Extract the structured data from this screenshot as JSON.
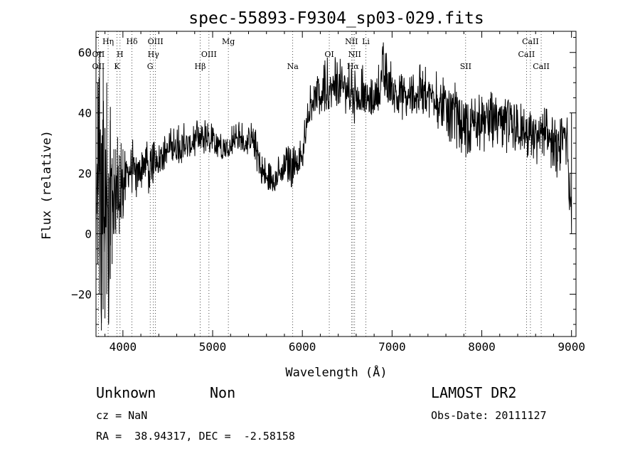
{
  "chart_data": {
    "type": "line",
    "title": "spec-55893-F9304_sp03-029.fits",
    "xlabel": "Wavelength (Å)",
    "ylabel": "Flux (relative)",
    "xlim": [
      3700,
      9050
    ],
    "ylim": [
      -34,
      67
    ],
    "xticks": [
      4000,
      5000,
      6000,
      7000,
      8000,
      9000
    ],
    "yticks": [
      -20,
      0,
      20,
      40,
      60
    ],
    "grid": false,
    "line_color": "#000000",
    "series": [
      {
        "x": [
          3700,
          3720,
          3740,
          3760,
          3780,
          3800,
          3820,
          3840,
          3860,
          3880,
          3900,
          3920,
          3940,
          3960,
          3980,
          4000,
          4050,
          4100,
          4150,
          4200,
          4250,
          4300,
          4350,
          4400,
          4450,
          4500,
          4550,
          4600,
          4650,
          4700,
          4750,
          4800,
          4850,
          4900,
          4950,
          5000,
          5050,
          5100,
          5150,
          5200,
          5250,
          5300,
          5350,
          5400,
          5450,
          5500,
          5550,
          5600,
          5650,
          5700,
          5750,
          5800,
          5850,
          5900,
          5950,
          6000,
          6050,
          6100,
          6150,
          6200,
          6250,
          6300,
          6350,
          6400,
          6450,
          6500,
          6550,
          6600,
          6650,
          6700,
          6750,
          6800,
          6850,
          6900,
          6950,
          7000,
          7050,
          7100,
          7150,
          7200,
          7250,
          7300,
          7350,
          7400,
          7450,
          7500,
          7550,
          7600,
          7650,
          7700,
          7750,
          7800,
          7850,
          7900,
          7950,
          8000,
          8050,
          8100,
          8150,
          8200,
          8250,
          8300,
          8350,
          8400,
          8450,
          8500,
          8550,
          8600,
          8650,
          8700,
          8750,
          8800,
          8850,
          8900,
          8950,
          9000
        ],
        "y": [
          -10,
          20,
          45,
          -25,
          35,
          0,
          40,
          -28,
          30,
          5,
          15,
          10,
          20,
          8,
          18,
          15,
          20,
          22,
          18,
          22,
          25,
          20,
          24,
          26,
          27,
          27,
          28,
          28,
          29,
          30,
          29,
          31,
          30,
          32,
          31,
          31,
          31,
          30,
          29,
          30,
          31,
          31,
          30,
          31,
          31,
          27,
          21,
          18,
          17,
          18,
          20,
          21,
          22,
          23,
          25,
          24,
          40,
          44,
          45,
          46,
          48,
          47,
          48,
          50,
          49,
          48,
          44,
          45,
          46,
          45,
          44,
          45,
          48,
          50,
          50,
          48,
          47,
          46,
          45,
          45,
          46,
          47,
          47,
          46,
          46,
          45,
          43,
          42,
          41,
          40,
          39,
          38,
          36,
          36,
          37,
          38,
          37,
          38,
          38,
          37,
          37,
          36,
          35,
          34,
          35,
          34,
          33,
          32,
          33,
          33,
          32,
          29,
          28,
          31,
          30,
          1
        ],
        "min_y": [
          -32,
          -10,
          -20,
          -32,
          -25,
          -28,
          -20,
          -30,
          -15,
          -10,
          0,
          0,
          5,
          0,
          5,
          5,
          10,
          12,
          10,
          14,
          15,
          12,
          18,
          20,
          21,
          20,
          22,
          22,
          23,
          24,
          24,
          25,
          24,
          25,
          27,
          26,
          25,
          24,
          25,
          26,
          27,
          26,
          27,
          26,
          25,
          20,
          15,
          14,
          14,
          14,
          16,
          15,
          17,
          14,
          17,
          19,
          34,
          37,
          37,
          38,
          40,
          37,
          40,
          42,
          41,
          39,
          34,
          38,
          39,
          37,
          37,
          38,
          41,
          42,
          43,
          39,
          40,
          38,
          36,
          38,
          39,
          40,
          39,
          38,
          38,
          35,
          32,
          32,
          28,
          29,
          27,
          26,
          22,
          25,
          27,
          28,
          26,
          28,
          28,
          27,
          26,
          24,
          25,
          24,
          26,
          24,
          22,
          22,
          24,
          24,
          22,
          19,
          17,
          22,
          21,
          0
        ],
        "max_y": [
          20,
          50,
          60,
          30,
          55,
          35,
          50,
          20,
          42,
          25,
          28,
          28,
          32,
          26,
          30,
          28,
          30,
          32,
          28,
          33,
          35,
          30,
          32,
          34,
          35,
          34,
          36,
          36,
          37,
          38,
          37,
          38,
          37,
          38,
          37,
          37,
          36,
          36,
          35,
          36,
          37,
          38,
          37,
          37,
          37,
          33,
          28,
          25,
          24,
          25,
          27,
          28,
          30,
          31,
          32,
          31,
          50,
          53,
          53,
          54,
          58,
          60,
          59,
          60,
          58,
          57,
          56,
          55,
          57,
          55,
          54,
          55,
          60,
          64,
          62,
          58,
          56,
          56,
          54,
          55,
          56,
          57,
          56,
          55,
          55,
          54,
          52,
          52,
          51,
          51,
          49,
          47,
          46,
          46,
          46,
          47,
          46,
          47,
          47,
          46,
          46,
          45,
          44,
          43,
          44,
          43,
          42,
          41,
          42,
          42,
          41,
          38,
          37,
          39,
          39,
          40
        ]
      }
    ],
    "line_markers": [
      {
        "label": "Hη",
        "x": 3835,
        "row": 0
      },
      {
        "label": "Hδ",
        "x": 4101,
        "row": 0
      },
      {
        "label": "OIII",
        "x": 4363,
        "row": 0
      },
      {
        "label": "Mg",
        "x": 5175,
        "row": 0
      },
      {
        "label": "NII",
        "x": 6548,
        "row": 0
      },
      {
        "label": "Li",
        "x": 6708,
        "row": 0
      },
      {
        "label": "CaII",
        "x": 8542,
        "row": 0
      },
      {
        "label": "OII",
        "x": 3727,
        "row": 1
      },
      {
        "label": "H",
        "x": 3968,
        "row": 1
      },
      {
        "label": "Hγ",
        "x": 4340,
        "row": 1
      },
      {
        "label": "OIII",
        "x": 4959,
        "row": 1
      },
      {
        "label": "OI",
        "x": 6300,
        "row": 1
      },
      {
        "label": "NII",
        "x": 6583,
        "row": 1
      },
      {
        "label": "CaII",
        "x": 8498,
        "row": 1
      },
      {
        "label": "OII",
        "x": 3727,
        "row": 2
      },
      {
        "label": "K",
        "x": 3934,
        "row": 2
      },
      {
        "label": "G",
        "x": 4304,
        "row": 2
      },
      {
        "label": "Hβ",
        "x": 4861,
        "row": 2
      },
      {
        "label": "Na",
        "x": 5893,
        "row": 2
      },
      {
        "label": "Hα",
        "x": 6563,
        "row": 2
      },
      {
        "label": "SII",
        "x": 7820,
        "row": 2
      },
      {
        "label": "CaII",
        "x": 8662,
        "row": 2
      }
    ]
  },
  "info": {
    "class": "Unknown",
    "subclass": "Non",
    "cz": "cz = NaN",
    "coords": "RA =  38.94317, DEC =  -2.58158",
    "survey": "LAMOST DR2",
    "obs_date": "Obs-Date: 20111127"
  }
}
